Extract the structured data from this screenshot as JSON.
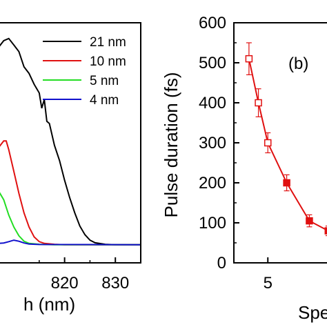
{
  "chart_data": [
    {
      "type": "line",
      "title": "",
      "xlabel": "h (nm)",
      "ylabel": "",
      "xlim": [
        807,
        835
      ],
      "x_ticks": [
        820,
        830
      ],
      "legend_position": "top-right",
      "grid": false,
      "series": [
        {
          "name": "21 nm",
          "color": "#000000",
          "x": [
            807.0,
            808.0,
            809.0,
            810.0,
            811.0,
            812.0,
            813.0,
            814.0,
            815.0,
            815.5,
            816.0,
            816.5,
            817.0,
            818.0,
            819.0,
            820.0,
            821.0,
            822.0,
            823.0,
            824.0,
            825.0,
            826.0,
            828.0,
            830.0,
            835.0
          ],
          "y": [
            0.91,
            0.94,
            0.95,
            0.92,
            0.89,
            0.82,
            0.79,
            0.74,
            0.7,
            0.63,
            0.67,
            0.57,
            0.56,
            0.46,
            0.39,
            0.3,
            0.22,
            0.15,
            0.09,
            0.05,
            0.025,
            0.013,
            0.006,
            0.004,
            0.004
          ]
        },
        {
          "name": "10 nm",
          "color": "#e01010",
          "x": [
            807.0,
            808.0,
            808.5,
            809.0,
            810.0,
            811.0,
            812.0,
            813.0,
            814.0,
            815.0,
            816.0,
            818.0,
            820.0,
            835.0
          ],
          "y": [
            0.45,
            0.48,
            0.48,
            0.44,
            0.34,
            0.24,
            0.15,
            0.085,
            0.04,
            0.018,
            0.01,
            0.006,
            0.004,
            0.004
          ]
        },
        {
          "name": "5 nm",
          "color": "#22dd22",
          "x": [
            807.0,
            808.0,
            809.0,
            810.0,
            811.0,
            812.0,
            813.0,
            815.0,
            818.0,
            835.0
          ],
          "y": [
            0.25,
            0.21,
            0.14,
            0.085,
            0.045,
            0.02,
            0.01,
            0.006,
            0.004,
            0.004
          ]
        },
        {
          "name": "4 nm",
          "color": "#1010cc",
          "x": [
            807.0,
            808.0,
            809.0,
            810.0,
            811.0,
            812.0,
            813.0,
            815.0,
            835.0
          ],
          "y": [
            0.01,
            0.012,
            0.018,
            0.025,
            0.02,
            0.012,
            0.007,
            0.005,
            0.004
          ]
        }
      ]
    },
    {
      "type": "scatter",
      "annotation": "(b)",
      "title": "",
      "xlabel": "Spec",
      "ylabel": "Pulse duration (fs)",
      "ylim": [
        0,
        600
      ],
      "y_ticks": [
        0,
        100,
        200,
        300,
        400,
        500,
        600
      ],
      "xlim": [
        3.2,
        8.5
      ],
      "x_ticks": [
        5
      ],
      "line_color": "#e01010",
      "series": [
        {
          "name": "",
          "x": [
            4.0,
            4.5,
            5.0,
            6.0,
            7.2,
            8.2
          ],
          "y": [
            510,
            400,
            300,
            200,
            105,
            80
          ],
          "y_error": [
            40,
            35,
            25,
            20,
            15,
            12
          ],
          "marker": [
            "open-square",
            "open-square",
            "open-square",
            "filled-square",
            "filled-square",
            "filled-square"
          ]
        }
      ]
    }
  ]
}
